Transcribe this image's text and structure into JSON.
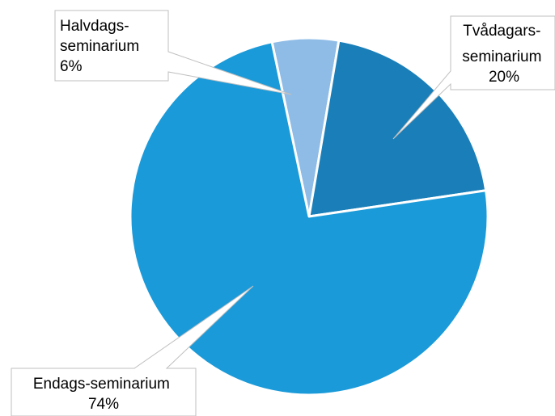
{
  "chart_data": {
    "type": "pie",
    "categories": [
      "Halvdags-seminarium",
      "Tvådagars-seminarium",
      "Endags-seminarium"
    ],
    "values": [
      6,
      20,
      74
    ],
    "unit": "%",
    "colors": [
      "#8FBCE6",
      "#1A7FB8",
      "#1A9AD9"
    ],
    "slice_border_color": "#ffffff",
    "start": "top",
    "direction": "clockwise",
    "legend": "none",
    "data_labels": [
      {
        "line1": "Halvdags-",
        "line2": "seminarium",
        "value": "6%"
      },
      {
        "line1": "Tvådagars-",
        "line2": "seminarium",
        "value": "20%"
      },
      {
        "line1": "Endags-seminarium",
        "line2": "",
        "value": "74%"
      }
    ]
  }
}
